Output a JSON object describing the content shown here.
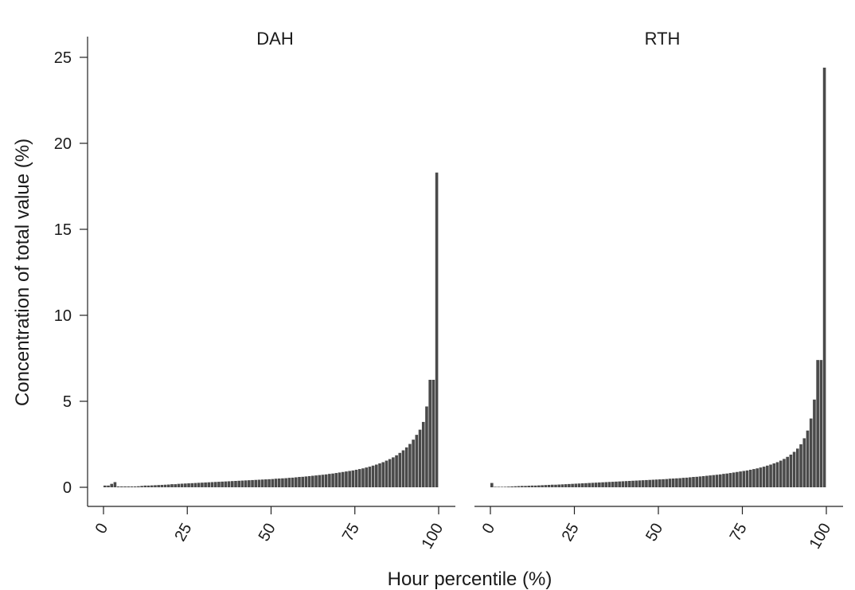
{
  "chart_data": {
    "type": "bar",
    "ylabel": "Concentration of total value (%)",
    "xlabel": "Hour percentile (%)",
    "ylim": [
      0,
      25
    ],
    "yticks": [
      0,
      5,
      10,
      15,
      20,
      25
    ],
    "xlim": [
      0,
      100
    ],
    "xticks": [
      0,
      25,
      50,
      75,
      100
    ],
    "bar_color": "#4a4a4a",
    "grid": false,
    "panels": [
      {
        "title": "DAH",
        "x": [
          1,
          2,
          3,
          4,
          5,
          6,
          7,
          8,
          9,
          10,
          11,
          12,
          13,
          14,
          15,
          16,
          17,
          18,
          19,
          20,
          21,
          22,
          23,
          24,
          25,
          26,
          27,
          28,
          29,
          30,
          31,
          32,
          33,
          34,
          35,
          36,
          37,
          38,
          39,
          40,
          41,
          42,
          43,
          44,
          45,
          46,
          47,
          48,
          49,
          50,
          51,
          52,
          53,
          54,
          55,
          56,
          57,
          58,
          59,
          60,
          61,
          62,
          63,
          64,
          65,
          66,
          67,
          68,
          69,
          70,
          71,
          72,
          73,
          74,
          75,
          76,
          77,
          78,
          79,
          80,
          81,
          82,
          83,
          84,
          85,
          86,
          87,
          88,
          89,
          90,
          91,
          92,
          93,
          94,
          95,
          96,
          97,
          98,
          99,
          100
        ],
        "values": [
          0.1,
          0.1,
          0.2,
          0.3,
          0.05,
          0.05,
          0.05,
          0.05,
          0.05,
          0.05,
          0.06,
          0.08,
          0.1,
          0.1,
          0.11,
          0.12,
          0.13,
          0.14,
          0.15,
          0.16,
          0.18,
          0.18,
          0.2,
          0.21,
          0.22,
          0.23,
          0.24,
          0.25,
          0.26,
          0.27,
          0.28,
          0.29,
          0.3,
          0.31,
          0.32,
          0.33,
          0.34,
          0.35,
          0.36,
          0.37,
          0.38,
          0.39,
          0.4,
          0.41,
          0.42,
          0.43,
          0.44,
          0.45,
          0.46,
          0.47,
          0.48,
          0.5,
          0.51,
          0.52,
          0.53,
          0.55,
          0.56,
          0.58,
          0.6,
          0.61,
          0.63,
          0.65,
          0.67,
          0.69,
          0.71,
          0.73,
          0.75,
          0.78,
          0.8,
          0.83,
          0.86,
          0.89,
          0.92,
          0.95,
          0.98,
          1.02,
          1.06,
          1.1,
          1.15,
          1.2,
          1.26,
          1.32,
          1.39,
          1.46,
          1.55,
          1.64,
          1.74,
          1.86,
          2.0,
          2.15,
          2.32,
          2.52,
          2.77,
          3.05,
          3.35,
          3.8,
          4.7,
          6.25,
          6.25,
          18.3
        ]
      },
      {
        "title": "RTH",
        "x": [
          1,
          2,
          3,
          4,
          5,
          6,
          7,
          8,
          9,
          10,
          11,
          12,
          13,
          14,
          15,
          16,
          17,
          18,
          19,
          20,
          21,
          22,
          23,
          24,
          25,
          26,
          27,
          28,
          29,
          30,
          31,
          32,
          33,
          34,
          35,
          36,
          37,
          38,
          39,
          40,
          41,
          42,
          43,
          44,
          45,
          46,
          47,
          48,
          49,
          50,
          51,
          52,
          53,
          54,
          55,
          56,
          57,
          58,
          59,
          60,
          61,
          62,
          63,
          64,
          65,
          66,
          67,
          68,
          69,
          70,
          71,
          72,
          73,
          74,
          75,
          76,
          77,
          78,
          79,
          80,
          81,
          82,
          83,
          84,
          85,
          86,
          87,
          88,
          89,
          90,
          91,
          92,
          93,
          94,
          95,
          96,
          97,
          98,
          99,
          100
        ],
        "values": [
          0.25,
          0.01,
          0.02,
          0.02,
          0.03,
          0.04,
          0.05,
          0.06,
          0.07,
          0.08,
          0.08,
          0.09,
          0.1,
          0.1,
          0.11,
          0.12,
          0.13,
          0.14,
          0.15,
          0.15,
          0.16,
          0.17,
          0.18,
          0.19,
          0.2,
          0.21,
          0.22,
          0.23,
          0.24,
          0.25,
          0.26,
          0.27,
          0.28,
          0.29,
          0.3,
          0.31,
          0.32,
          0.33,
          0.34,
          0.35,
          0.36,
          0.37,
          0.38,
          0.39,
          0.4,
          0.41,
          0.42,
          0.43,
          0.44,
          0.45,
          0.46,
          0.47,
          0.48,
          0.5,
          0.51,
          0.52,
          0.53,
          0.55,
          0.56,
          0.58,
          0.6,
          0.61,
          0.63,
          0.65,
          0.67,
          0.69,
          0.71,
          0.73,
          0.75,
          0.78,
          0.8,
          0.83,
          0.86,
          0.89,
          0.92,
          0.95,
          0.98,
          1.02,
          1.06,
          1.1,
          1.15,
          1.2,
          1.26,
          1.32,
          1.39,
          1.46,
          1.55,
          1.65,
          1.77,
          1.9,
          2.06,
          2.25,
          2.5,
          2.85,
          3.3,
          4.0,
          5.1,
          7.4,
          7.4,
          24.4
        ]
      }
    ]
  }
}
